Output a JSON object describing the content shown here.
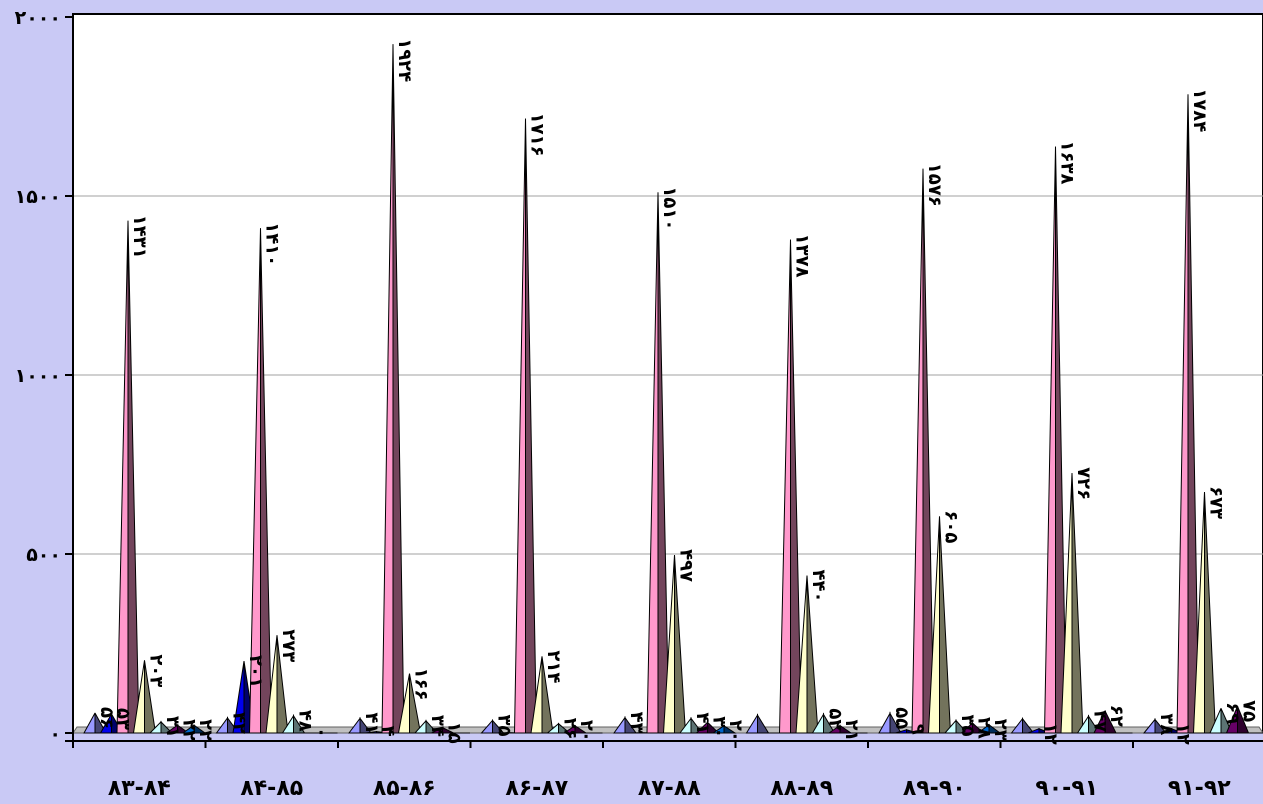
{
  "chart_data": {
    "type": "area",
    "title": "",
    "xlabel": "",
    "ylabel": "",
    "ylim": [
      0,
      2000
    ],
    "yticks": [
      0,
      500,
      1000,
      1500,
      2000
    ],
    "ytick_labels": [
      "۰",
      "۵۰۰",
      "۱۰۰۰",
      "۱۵۰۰",
      "۲۰۰۰"
    ],
    "grid": true,
    "legend": "none",
    "categories": [
      "۸۳-۸۴",
      "۸۴-۸۵",
      "۸۵-۸۶",
      "۸۶-۸۷",
      "۸۷-۸۸",
      "۸۸-۸۹",
      "۸۹-۹۰",
      "۹۰-۹۱",
      "۹۱-۹۲"
    ],
    "series": [
      {
        "color": "#9999ff",
        "values": [
          56,
          42,
          41,
          35,
          43,
          50,
          55,
          40,
          38
        ],
        "labels": [
          "۵۶",
          "۴۲",
          "۴۱",
          "۳۵",
          "۴۳",
          "",
          "۵۵",
          "",
          "۳۸"
        ]
      },
      {
        "color": "#0000ee",
        "values": [
          53,
          201,
          4,
          1,
          1,
          0,
          9,
          12,
          12
        ],
        "labels": [
          "۵۳",
          "۲۰۱",
          "۴",
          "",
          "",
          "",
          "۹",
          "۱۲",
          "۱۲"
        ]
      },
      {
        "color": "#ff99cc",
        "values": [
          1431,
          1410,
          1924,
          1716,
          1510,
          1378,
          1576,
          1638,
          1784
        ],
        "labels": [
          "۱۴۳۱",
          "۱۴۱۰",
          "۱۹۲۴",
          "۱۷۱۶",
          "۱۵۱۰",
          "۱۳۷۸",
          "۱۵۷۶",
          "۱۶۳۸",
          "۱۷۸۴"
        ]
      },
      {
        "color": "#ffffcc",
        "values": [
          203,
          273,
          166,
          214,
          497,
          440,
          605,
          726,
          673
        ],
        "labels": [
          "۲۰۳",
          "۲۷۳",
          "۱۶۶",
          "۲۱۴",
          "۴۹۷",
          "۴۴۰",
          "۶۰۵",
          "۷۲۶",
          "۶۷۳"
        ]
      },
      {
        "color": "#ccffff",
        "values": [
          31,
          48,
          34,
          26,
          41,
          52,
          35,
          47,
          69
        ],
        "labels": [
          "۳۱",
          "۴۸",
          "۳۴",
          "۲۶",
          "۴۱",
          "۵۲",
          "۳۵",
          "۴۷",
          "۶۹"
        ]
      },
      {
        "color": "#660066",
        "values": [
          22,
          0,
          15,
          20,
          30,
          21,
          28,
          62,
          75
        ],
        "labels": [
          "۲۲",
          "۰",
          "۱۵",
          "۲۰",
          "۳۰",
          "۲۱",
          "۲۸",
          "۶۲",
          "۷۵"
        ]
      },
      {
        "color": "#0066cc",
        "values": [
          22,
          0,
          0,
          0,
          20,
          0,
          23,
          0,
          0
        ],
        "labels": [
          "۲۲",
          "",
          "",
          "",
          "۲۰",
          "",
          "۲۳",
          "",
          ""
        ]
      }
    ]
  }
}
